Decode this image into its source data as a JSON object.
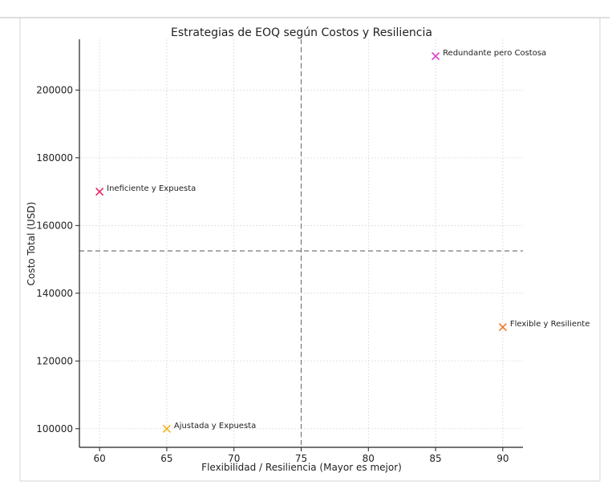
{
  "chart_data": {
    "type": "scatter",
    "title": "Estrategias de EOQ según Costos y Resiliencia",
    "xlabel": "Flexibilidad / Resiliencia (Mayor es mejor)",
    "ylabel": "Costo Total (USD)",
    "xlim": [
      58.5,
      91.5
    ],
    "ylim": [
      94500,
      215000
    ],
    "xticks": [
      60,
      65,
      70,
      75,
      80,
      85,
      90
    ],
    "yticks": [
      100000,
      120000,
      140000,
      160000,
      180000,
      200000
    ],
    "xtick_labels": [
      "60",
      "65",
      "70",
      "75",
      "80",
      "85",
      "90"
    ],
    "ytick_labels": [
      "100000",
      "120000",
      "140000",
      "160000",
      "180000",
      "200000"
    ],
    "grid": true,
    "marker": "x",
    "reference_lines": {
      "x": 75,
      "y": 152500,
      "style": "dashed"
    },
    "points": [
      {
        "label": "Ineficiente y Expuesta",
        "x": 60,
        "y": 170000,
        "color": "#e8256a"
      },
      {
        "label": "Ajustada y Expuesta",
        "x": 65,
        "y": 100000,
        "color": "#f0b21e"
      },
      {
        "label": "Redundante pero Costosa",
        "x": 85,
        "y": 210000,
        "color": "#d63fd0"
      },
      {
        "label": "Flexible y Resiliente",
        "x": 90,
        "y": 130000,
        "color": "#f07a2a"
      }
    ]
  }
}
